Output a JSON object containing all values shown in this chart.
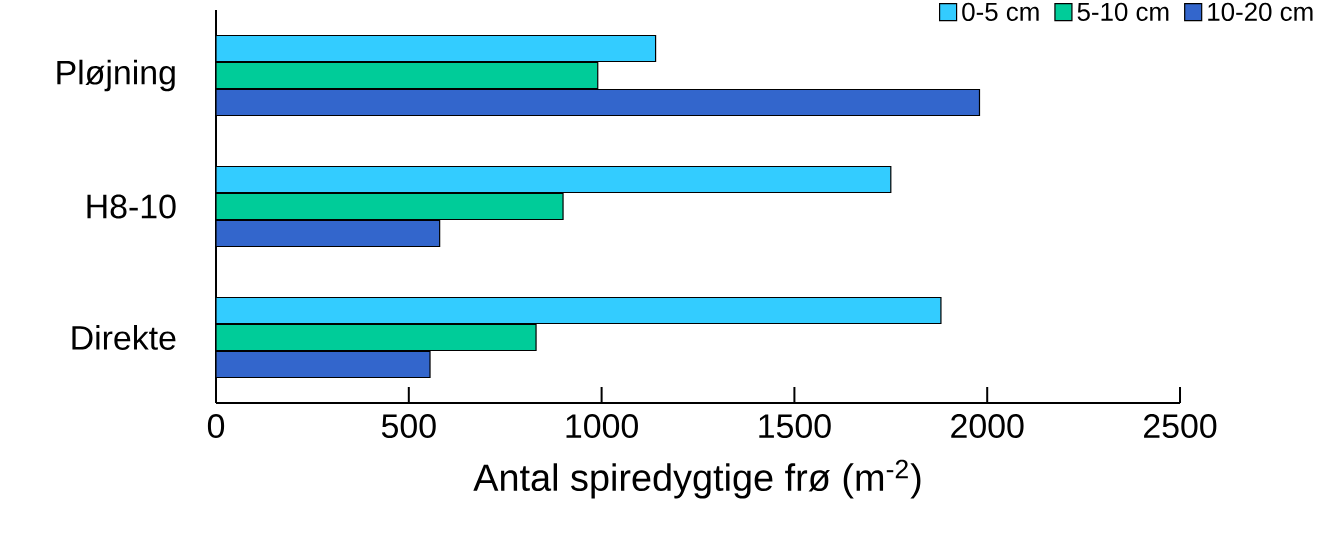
{
  "chart_data": {
    "type": "bar",
    "orientation": "horizontal",
    "xlabel": "Antal spiredygtige frø (m$^{-2}$)",
    "categories": [
      "Pløjning",
      "H8-10",
      "Direkte"
    ],
    "series": [
      {
        "name": "0-5 cm",
        "color": "#33ccff",
        "values": [
          1140,
          1750,
          1880
        ]
      },
      {
        "name": "5-10 cm",
        "color": "#00cc99",
        "values": [
          990,
          900,
          830
        ]
      },
      {
        "name": "10-20 cm",
        "color": "#3366cc",
        "values": [
          1980,
          580,
          555
        ]
      }
    ],
    "xlim": [
      0,
      2500
    ],
    "xticks": [
      0,
      500,
      1000,
      1500,
      2000,
      2500
    ],
    "grid": false,
    "legend": "top right"
  }
}
